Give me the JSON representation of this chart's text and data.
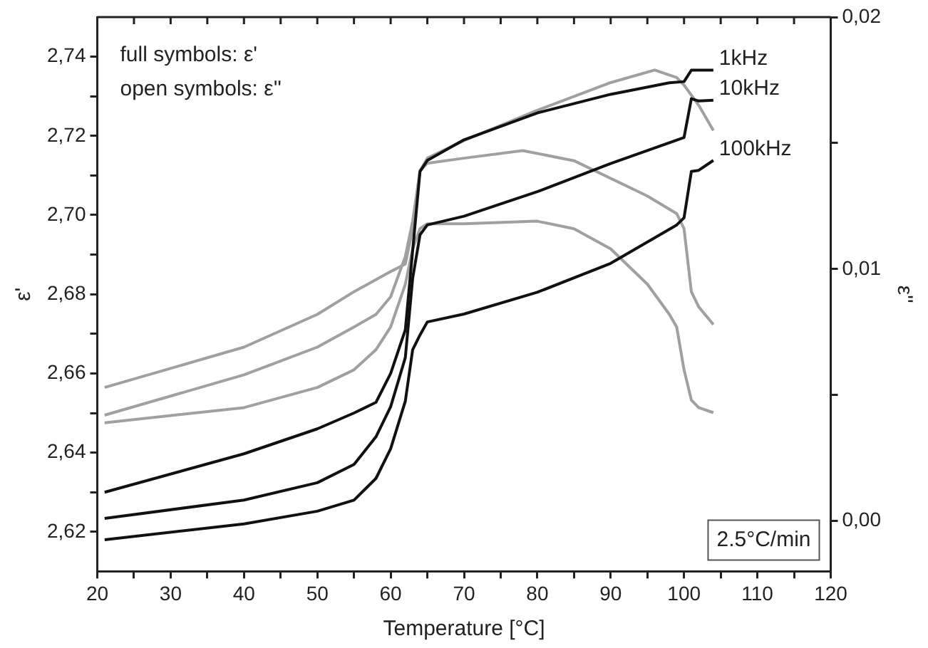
{
  "chart_data": {
    "type": "line",
    "xlabel": "Temperature [°C]",
    "ylabel": "ε'",
    "y2label": "ε''",
    "annotations": [
      "full symbols: ε'",
      "open symbols: ε''",
      "2.5°C/min"
    ],
    "xlim": [
      20,
      120
    ],
    "xticks": [
      20,
      {
        "value": 25,
        "label": null
      },
      30,
      {
        "value": 35,
        "label": null
      },
      40,
      {
        "value": 45,
        "label": null
      },
      50,
      {
        "value": 55,
        "label": null
      },
      60,
      {
        "value": 65,
        "label": null
      },
      70,
      {
        "value": 75,
        "label": null
      },
      80,
      {
        "value": 85,
        "label": null
      },
      90,
      {
        "value": 95,
        "label": null
      },
      100,
      {
        "value": 105,
        "label": null
      },
      110,
      {
        "value": 115,
        "label": null
      },
      120
    ],
    "ylim": [
      2.61,
      2.75
    ],
    "yticks": [
      {
        "value": 2.62,
        "label": "2,62"
      },
      {
        "value": 2.63,
        "label": null
      },
      {
        "value": 2.64,
        "label": "2,64"
      },
      {
        "value": 2.65,
        "label": null
      },
      {
        "value": 2.66,
        "label": "2,66"
      },
      {
        "value": 2.67,
        "label": null
      },
      {
        "value": 2.68,
        "label": "2,68"
      },
      {
        "value": 2.69,
        "label": null
      },
      {
        "value": 2.7,
        "label": "2,70"
      },
      {
        "value": 2.71,
        "label": null
      },
      {
        "value": 2.72,
        "label": "2,72"
      },
      {
        "value": 2.73,
        "label": null
      },
      {
        "value": 2.74,
        "label": "2,74"
      }
    ],
    "y2lim": [
      -0.002,
      0.02
    ],
    "y2ticks": [
      {
        "value": 0,
        "label": "0,00"
      },
      {
        "value": 0.005,
        "label": null
      },
      {
        "value": 0.01,
        "label": "0,01"
      },
      {
        "value": 0.015,
        "label": null
      },
      {
        "value": 0.02,
        "label": "0,02"
      }
    ],
    "grid": false,
    "legend": false,
    "marker": "none",
    "line_style": "solid",
    "series": [
      {
        "name": "1kHz",
        "color": "#111111",
        "x": [
          21,
          40,
          50,
          55,
          58,
          60,
          62,
          63,
          64,
          65,
          70,
          80,
          90,
          98,
          100,
          101,
          104
        ],
        "values": [
          2.63,
          2.6397,
          2.646,
          2.65,
          2.6527,
          2.66,
          2.671,
          2.691,
          2.711,
          2.7138,
          2.719,
          2.7258,
          2.7305,
          2.7334,
          2.7337,
          2.7366,
          2.7366
        ]
      },
      {
        "name": "10kHz",
        "color": "#111111",
        "x": [
          21,
          40,
          50,
          55,
          58,
          60,
          62,
          63,
          64,
          65,
          70,
          80,
          90,
          100,
          101,
          102,
          104
        ],
        "values": [
          2.6234,
          2.628,
          2.6324,
          2.637,
          2.644,
          2.6516,
          2.664,
          2.684,
          2.695,
          2.6975,
          2.6997,
          2.7059,
          2.713,
          2.7196,
          2.7294,
          2.7288,
          2.729
        ]
      },
      {
        "name": "100kHz",
        "color": "#111111",
        "x": [
          21,
          40,
          50,
          55,
          58,
          60,
          62,
          63,
          64,
          65,
          70,
          80,
          90,
          99,
          100,
          101,
          102,
          104
        ],
        "values": [
          2.618,
          2.622,
          2.6252,
          2.628,
          2.6335,
          2.641,
          2.653,
          2.666,
          2.6697,
          2.673,
          2.675,
          2.6805,
          2.6878,
          2.6975,
          2.6993,
          2.711,
          2.7113,
          2.7138
        ]
      },
      {
        "color": "#a0a0a0",
        "axis": "y2",
        "x": [
          21,
          40,
          50,
          55,
          60,
          62,
          63,
          64,
          65,
          70,
          80,
          90,
          96,
          99,
          100,
          102,
          104
        ],
        "values": [
          0.0053,
          0.0069,
          0.0082,
          0.0091,
          0.0099,
          0.0102,
          0.0116,
          0.0139,
          0.0144,
          0.0151,
          0.0163,
          0.0174,
          0.0179,
          0.0176,
          0.0173,
          0.0165,
          0.0155
        ]
      },
      {
        "color": "#a0a0a0",
        "axis": "y2",
        "x": [
          21,
          40,
          50,
          55,
          58,
          60,
          62,
          63,
          64,
          65,
          70,
          78,
          85,
          90,
          95,
          99,
          100,
          101,
          102,
          104
        ],
        "values": [
          0.0042,
          0.0058,
          0.0069,
          0.0077,
          0.0082,
          0.0089,
          0.0105,
          0.0119,
          0.0139,
          0.0142,
          0.0144,
          0.0147,
          0.0143,
          0.0136,
          0.0129,
          0.0122,
          0.0116,
          0.0091,
          0.0085,
          0.0078
        ]
      },
      {
        "color": "#a0a0a0",
        "axis": "y2",
        "x": [
          21,
          40,
          50,
          55,
          58,
          60,
          62,
          63,
          64,
          65,
          70,
          80,
          85,
          90,
          95,
          98,
          99,
          100,
          101,
          102,
          104
        ],
        "values": [
          0.0039,
          0.0045,
          0.0053,
          0.006,
          0.0068,
          0.0077,
          0.0094,
          0.0108,
          0.0116,
          0.0118,
          0.0118,
          0.0119,
          0.0116,
          0.0108,
          0.0094,
          0.0082,
          0.0077,
          0.006,
          0.0048,
          0.0045,
          0.0043
        ]
      }
    ]
  }
}
